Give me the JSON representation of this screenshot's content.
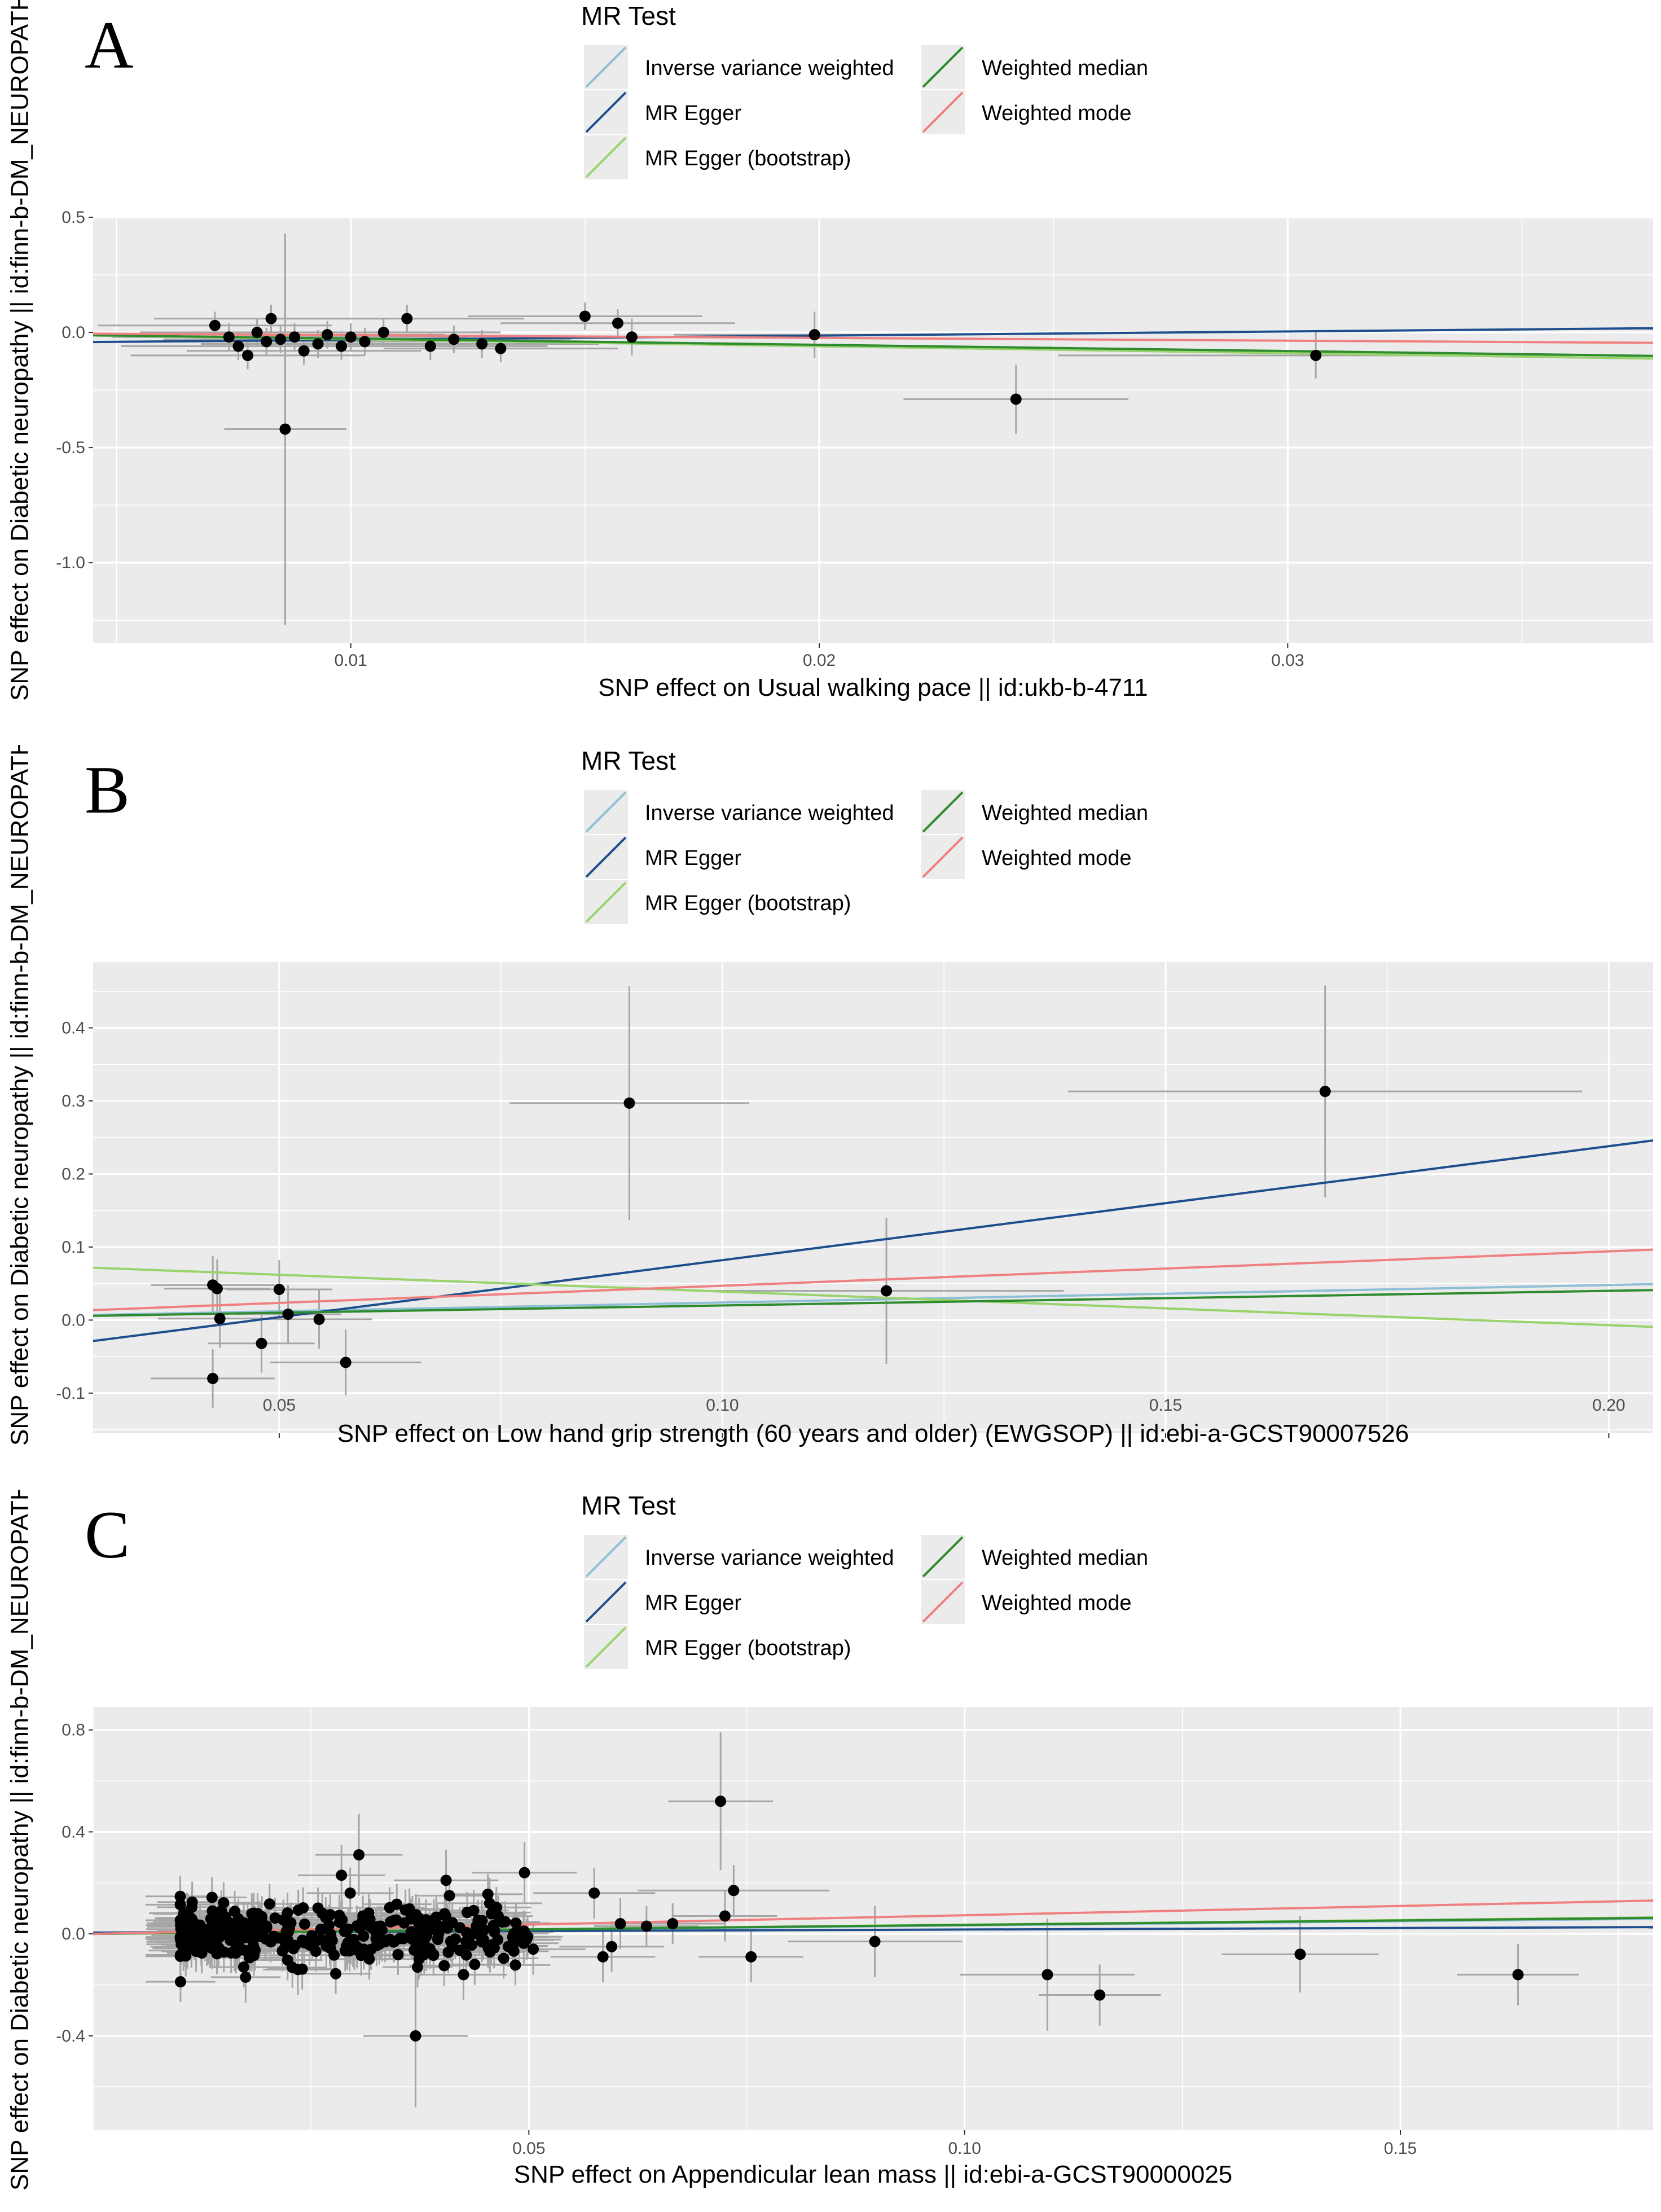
{
  "legend": {
    "title": "MR Test",
    "items": [
      {
        "label": "Inverse variance weighted",
        "color": "#8fbfd6"
      },
      {
        "label": "MR Egger",
        "color": "#1f4e8c"
      },
      {
        "label": "MR Egger (bootstrap)",
        "color": "#99d36b"
      },
      {
        "label": "Weighted median",
        "color": "#2e8b2e"
      },
      {
        "label": "Weighted mode",
        "color": "#f08080"
      }
    ]
  },
  "chart_data": [
    {
      "panel": "A",
      "type": "scatter",
      "xlabel": "SNP effect on Usual walking pace || id:ukb-b-4711",
      "ylabel": "SNP effect on Diabetic neuropathy || id:finn-b-DM_NEUROPATHY",
      "xlim": [
        0.0045,
        0.0378
      ],
      "ylim": [
        -1.35,
        0.5
      ],
      "xticks": [
        0.01,
        0.02,
        0.03
      ],
      "xtick_labels": [
        "0.01",
        "0.02",
        "0.03"
      ],
      "yticks": [
        0.5,
        0.0,
        -0.5,
        -1.0
      ],
      "ytick_labels": [
        "0.5",
        "0.0",
        "-0.5",
        "-1.0"
      ],
      "points": [
        {
          "x": 0.0071,
          "y": 0.03,
          "xe": 0.0025,
          "ye": 0.06
        },
        {
          "x": 0.0074,
          "y": -0.02,
          "xe": 0.0025,
          "ye": 0.06
        },
        {
          "x": 0.0076,
          "y": -0.06,
          "xe": 0.0025,
          "ye": 0.06
        },
        {
          "x": 0.0078,
          "y": -0.1,
          "xe": 0.0025,
          "ye": 0.06
        },
        {
          "x": 0.008,
          "y": 0.0,
          "xe": 0.0025,
          "ye": 0.06
        },
        {
          "x": 0.0082,
          "y": -0.04,
          "xe": 0.0025,
          "ye": 0.06
        },
        {
          "x": 0.0083,
          "y": 0.06,
          "xe": 0.0025,
          "ye": 0.06
        },
        {
          "x": 0.0085,
          "y": -0.03,
          "xe": 0.0025,
          "ye": 0.06
        },
        {
          "x": 0.0086,
          "y": -0.42,
          "xe": 0.0013,
          "ye": 0.85
        },
        {
          "x": 0.0088,
          "y": -0.02,
          "xe": 0.0025,
          "ye": 0.06
        },
        {
          "x": 0.009,
          "y": -0.08,
          "xe": 0.0025,
          "ye": 0.06
        },
        {
          "x": 0.0093,
          "y": -0.05,
          "xe": 0.0025,
          "ye": 0.06
        },
        {
          "x": 0.0095,
          "y": -0.01,
          "xe": 0.0025,
          "ye": 0.06
        },
        {
          "x": 0.0098,
          "y": -0.06,
          "xe": 0.0025,
          "ye": 0.06
        },
        {
          "x": 0.01,
          "y": -0.02,
          "xe": 0.0025,
          "ye": 0.06
        },
        {
          "x": 0.0103,
          "y": -0.04,
          "xe": 0.0025,
          "ye": 0.06
        },
        {
          "x": 0.0107,
          "y": 0.0,
          "xe": 0.0025,
          "ye": 0.06
        },
        {
          "x": 0.0112,
          "y": 0.06,
          "xe": 0.0025,
          "ye": 0.06
        },
        {
          "x": 0.0117,
          "y": -0.06,
          "xe": 0.0025,
          "ye": 0.06
        },
        {
          "x": 0.0122,
          "y": -0.03,
          "xe": 0.0025,
          "ye": 0.06
        },
        {
          "x": 0.0128,
          "y": -0.05,
          "xe": 0.0025,
          "ye": 0.06
        },
        {
          "x": 0.0132,
          "y": -0.07,
          "xe": 0.0025,
          "ye": 0.06
        },
        {
          "x": 0.015,
          "y": 0.07,
          "xe": 0.0025,
          "ye": 0.06
        },
        {
          "x": 0.0157,
          "y": 0.04,
          "xe": 0.0025,
          "ye": 0.06
        },
        {
          "x": 0.016,
          "y": -0.02,
          "xe": 0.0025,
          "ye": 0.08
        },
        {
          "x": 0.0199,
          "y": -0.01,
          "xe": 0.003,
          "ye": 0.1
        },
        {
          "x": 0.0242,
          "y": -0.29,
          "xe": 0.0024,
          "ye": 0.15
        },
        {
          "x": 0.0306,
          "y": -0.1,
          "xe": 0.0055,
          "ye": 0.1
        }
      ],
      "lines": [
        {
          "method": "Inverse variance weighted",
          "intercept": 0.0,
          "slope": -3.0
        },
        {
          "method": "MR Egger",
          "intercept": -0.05,
          "slope": 1.8
        },
        {
          "method": "MR Egger (bootstrap)",
          "intercept": 0.0,
          "slope": -3.0
        },
        {
          "method": "Weighted median",
          "intercept": 0.0,
          "slope": -2.7
        },
        {
          "method": "Weighted mode",
          "intercept": 0.0,
          "slope": -1.2
        }
      ]
    },
    {
      "panel": "B",
      "type": "scatter",
      "xlabel": "SNP effect on Low hand grip strength (60 years and older) (EWGSOP) || id:ebi-a-GCST90007526",
      "ylabel": "SNP effect on Diabetic neuropathy || id:finn-b-DM_NEUROPATHY",
      "xlim": [
        0.029,
        0.205
      ],
      "ylim": [
        -0.155,
        0.49
      ],
      "xticks": [
        0.05,
        0.1,
        0.15,
        0.2
      ],
      "xtick_labels": [
        "0.05",
        "0.10",
        "0.15",
        "0.20"
      ],
      "yticks": [
        0.4,
        0.3,
        0.2,
        0.1,
        0.0,
        -0.1
      ],
      "ytick_labels": [
        "0.4",
        "0.3",
        "0.2",
        "0.1",
        "0.0",
        "-0.1"
      ],
      "points": [
        {
          "x": 0.0425,
          "y": 0.048,
          "xe": 0.007,
          "ye": 0.04
        },
        {
          "x": 0.043,
          "y": 0.043,
          "xe": 0.006,
          "ye": 0.04
        },
        {
          "x": 0.0433,
          "y": 0.002,
          "xe": 0.007,
          "ye": 0.04
        },
        {
          "x": 0.0425,
          "y": -0.08,
          "xe": 0.007,
          "ye": 0.04
        },
        {
          "x": 0.048,
          "y": -0.032,
          "xe": 0.006,
          "ye": 0.04
        },
        {
          "x": 0.05,
          "y": 0.042,
          "xe": 0.006,
          "ye": 0.04
        },
        {
          "x": 0.051,
          "y": 0.008,
          "xe": 0.006,
          "ye": 0.04
        },
        {
          "x": 0.0545,
          "y": 0.001,
          "xe": 0.006,
          "ye": 0.04
        },
        {
          "x": 0.0575,
          "y": -0.058,
          "xe": 0.0085,
          "ye": 0.045
        },
        {
          "x": 0.0895,
          "y": 0.297,
          "xe": 0.0135,
          "ye": 0.16
        },
        {
          "x": 0.1185,
          "y": 0.04,
          "xe": 0.02,
          "ye": 0.1
        },
        {
          "x": 0.168,
          "y": 0.313,
          "xe": 0.029,
          "ye": 0.145
        }
      ],
      "lines": [
        {
          "method": "Inverse variance weighted",
          "intercept": 0.0,
          "slope": 0.24
        },
        {
          "method": "MR Egger",
          "intercept": -0.074,
          "slope": 1.56
        },
        {
          "method": "MR Egger (bootstrap)",
          "intercept": 0.085,
          "slope": -0.46
        },
        {
          "method": "Weighted median",
          "intercept": 0.0,
          "slope": 0.2
        },
        {
          "method": "Weighted mode",
          "intercept": 0.0,
          "slope": 0.47
        }
      ]
    },
    {
      "panel": "C",
      "type": "scatter",
      "xlabel": "SNP effect on Appendicular lean mass || id:ebi-a-GCST90000025",
      "ylabel": "SNP effect on Diabetic neuropathy || id:finn-b-DM_NEUROPATHY",
      "xlim": [
        0.0,
        0.179
      ],
      "ylim": [
        -0.77,
        0.89
      ],
      "xticks": [
        0.05,
        0.1,
        0.15
      ],
      "xtick_labels": [
        "0.05",
        "0.10",
        "0.15"
      ],
      "yticks": [
        0.8,
        0.4,
        0.0,
        -0.4
      ],
      "ytick_labels": [
        "0.8",
        "0.4",
        "0.0",
        "-0.4"
      ],
      "points": [
        {
          "x": 0.072,
          "y": 0.52,
          "xe": 0.006,
          "ye": 0.27
        },
        {
          "x": 0.0735,
          "y": 0.17,
          "xe": 0.011,
          "ye": 0.1
        },
        {
          "x": 0.0725,
          "y": 0.07,
          "xe": 0.006,
          "ye": 0.1
        },
        {
          "x": 0.0755,
          "y": -0.09,
          "xe": 0.006,
          "ye": 0.1
        },
        {
          "x": 0.0575,
          "y": 0.16,
          "xe": 0.007,
          "ye": 0.1
        },
        {
          "x": 0.0495,
          "y": 0.24,
          "xe": 0.006,
          "ye": 0.12
        },
        {
          "x": 0.0305,
          "y": 0.31,
          "xe": 0.005,
          "ye": 0.16
        },
        {
          "x": 0.0295,
          "y": 0.16,
          "xe": 0.005,
          "ye": 0.1
        },
        {
          "x": 0.037,
          "y": -0.4,
          "xe": 0.006,
          "ye": 0.28
        },
        {
          "x": 0.0455,
          "y": 0.12,
          "xe": 0.006,
          "ye": 0.1
        },
        {
          "x": 0.0505,
          "y": -0.06,
          "xe": 0.006,
          "ye": 0.1
        },
        {
          "x": 0.0605,
          "y": 0.04,
          "xe": 0.006,
          "ye": 0.1
        },
        {
          "x": 0.0635,
          "y": 0.03,
          "xe": 0.006,
          "ye": 0.08
        },
        {
          "x": 0.0665,
          "y": 0.04,
          "xe": 0.006,
          "ye": 0.08
        },
        {
          "x": 0.0585,
          "y": -0.09,
          "xe": 0.006,
          "ye": 0.1
        },
        {
          "x": 0.0595,
          "y": -0.05,
          "xe": 0.006,
          "ye": 0.1
        },
        {
          "x": 0.0897,
          "y": -0.03,
          "xe": 0.01,
          "ye": 0.14
        },
        {
          "x": 0.1095,
          "y": -0.16,
          "xe": 0.01,
          "ye": 0.22
        },
        {
          "x": 0.1155,
          "y": -0.24,
          "xe": 0.007,
          "ye": 0.12
        },
        {
          "x": 0.1385,
          "y": -0.08,
          "xe": 0.009,
          "ye": 0.15
        },
        {
          "x": 0.1635,
          "y": -0.16,
          "xe": 0.007,
          "ye": 0.12
        },
        {
          "x": 0.0405,
          "y": 0.21,
          "xe": 0.006,
          "ye": 0.12
        },
        {
          "x": 0.0285,
          "y": 0.23,
          "xe": 0.005,
          "ye": 0.12
        },
        {
          "x": 0.0425,
          "y": -0.16,
          "xe": 0.005,
          "ye": 0.1
        },
        {
          "x": 0.0235,
          "y": -0.14,
          "xe": 0.004,
          "ye": 0.1
        },
        {
          "x": 0.0175,
          "y": -0.17,
          "xe": 0.004,
          "ye": 0.1
        }
      ],
      "cloud": {
        "x_from": 0.01,
        "x_to": 0.05,
        "y_center": 0.0,
        "y_spread": 0.12,
        "count": 360
      },
      "lines": [
        {
          "method": "Inverse variance weighted",
          "intercept": 0.0,
          "slope": 0.33
        },
        {
          "method": "MR Egger",
          "intercept": 0.005,
          "slope": 0.12
        },
        {
          "method": "MR Egger (bootstrap)",
          "intercept": 0.0,
          "slope": 0.36
        },
        {
          "method": "Weighted median",
          "intercept": 0.0,
          "slope": 0.35
        },
        {
          "method": "Weighted mode",
          "intercept": 0.0,
          "slope": 0.73
        }
      ]
    }
  ]
}
